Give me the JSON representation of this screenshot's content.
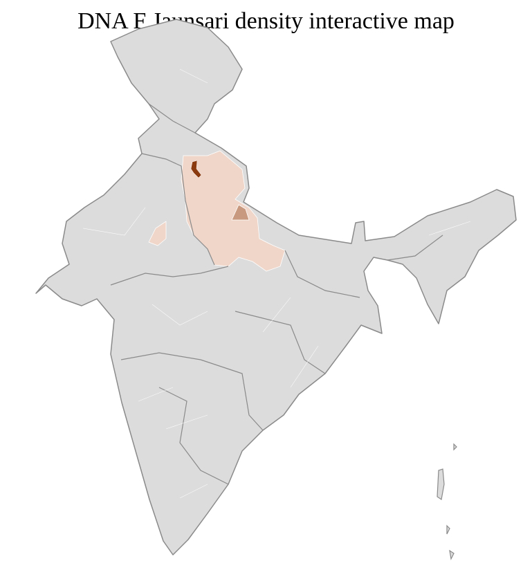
{
  "title": "DNA F Jaunsari density interactive map",
  "colors": {
    "base_region": "#dcdcdc",
    "district_border": "#ffffff",
    "state_border": "#8a8a8a",
    "density_low": "#efd6c9",
    "density_medium": "#c9997f",
    "density_high": "#8b3a0f"
  }
}
